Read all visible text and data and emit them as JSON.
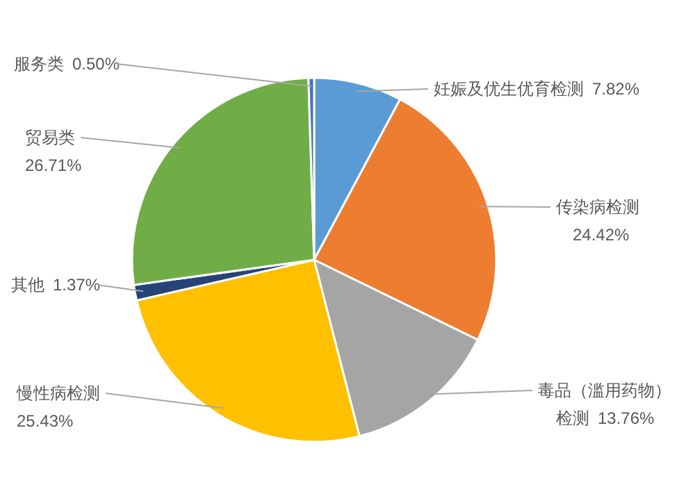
{
  "chart_data": {
    "type": "pie",
    "categories": [
      "妊娠及优生优育检测",
      "传染病检测",
      "毒品（滥用药物）检测",
      "慢性病检测",
      "其他",
      "贸易类",
      "服务类"
    ],
    "values": [
      7.82,
      24.42,
      13.76,
      25.43,
      1.37,
      26.71,
      0.5
    ],
    "value_labels": [
      "7.82%",
      "24.42%",
      "13.76%",
      "25.43%",
      "1.37%",
      "26.71%",
      "0.50%"
    ],
    "colors": [
      "#5b9bd5",
      "#ed7d31",
      "#a5a5a5",
      "#ffc000",
      "#264478",
      "#70ad47",
      "#4472c4"
    ]
  }
}
